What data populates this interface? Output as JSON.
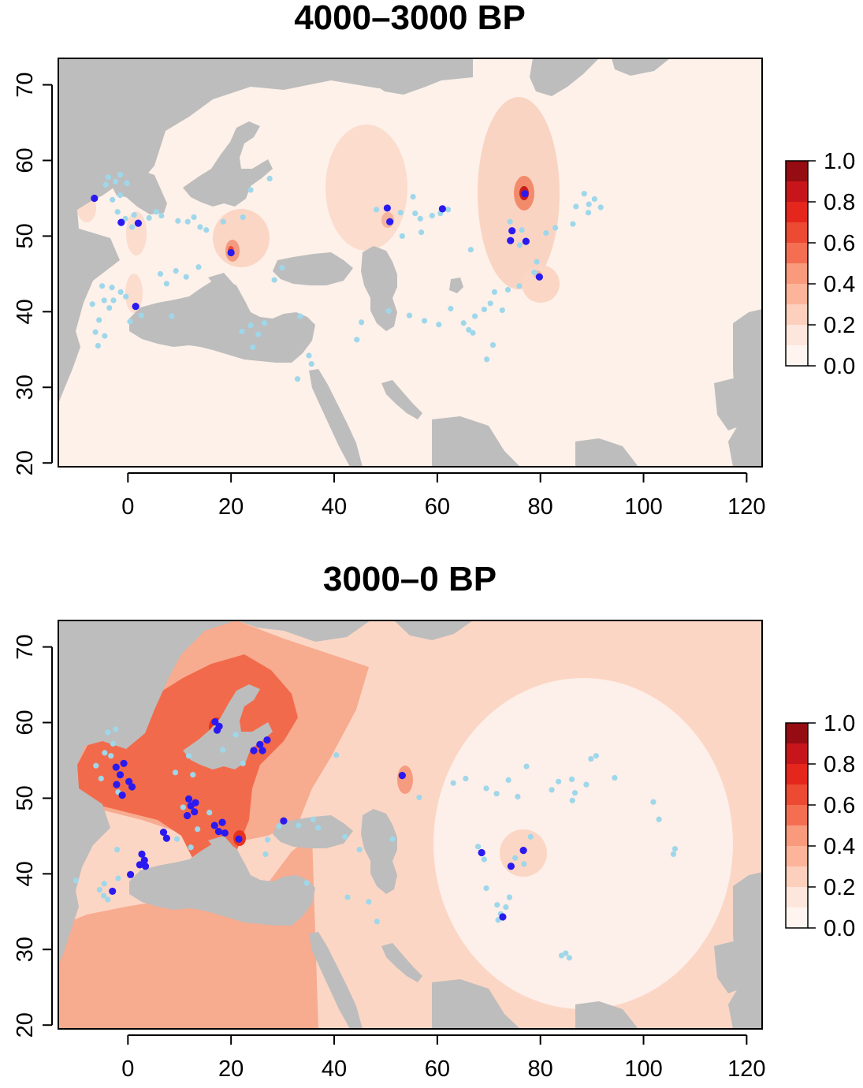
{
  "figure": {
    "colors": {
      "land_low": "#fdf1ea",
      "sea": "#bdbdbd",
      "site_absent": "#9fd7ea",
      "site_present": "#2a1af0",
      "legend_ramp": [
        "#fff5f0",
        "#fcd7c6",
        "#fc9f83",
        "#f4603f",
        "#e8251b",
        "#a50f15",
        "#67000d"
      ]
    },
    "legend": {
      "ticks": [
        "1.0",
        "0.8",
        "0.6",
        "0.4",
        "0.2",
        "0.0"
      ],
      "breaks": [
        0.0,
        0.1,
        0.2,
        0.3,
        0.4,
        0.5,
        0.6,
        0.7,
        0.8,
        0.9,
        1.0
      ]
    },
    "panels": [
      {
        "id": "panel-1",
        "title": "4000–3000 BP",
        "x_ticks": [
          "0",
          "20",
          "40",
          "60",
          "80",
          "100",
          "120"
        ],
        "y_ticks": [
          "20",
          "30",
          "40",
          "50",
          "60",
          "70"
        ]
      },
      {
        "id": "panel-2",
        "title": "3000–0 BP",
        "x_ticks": [
          "0",
          "20",
          "40",
          "60",
          "80",
          "100",
          "120"
        ],
        "y_ticks": [
          "20",
          "30",
          "40",
          "50",
          "60",
          "70"
        ]
      }
    ]
  },
  "chart_data": [
    {
      "type": "heatmap",
      "title": "4000–3000 BP",
      "xlim": [
        -13.5,
        123
      ],
      "ylim": [
        19.5,
        73.5
      ],
      "xticks": [
        0,
        20,
        40,
        60,
        80,
        100,
        120
      ],
      "yticks": [
        20,
        30,
        40,
        50,
        60,
        70
      ],
      "colorbar_range": [
        0,
        1
      ],
      "hotspots": [
        {
          "lon": 77,
          "lat": 55.5,
          "value": 0.95
        },
        {
          "lon": 20,
          "lat": 48,
          "value": 0.55
        },
        {
          "lon": 50.5,
          "lat": 53,
          "value": 0.25
        },
        {
          "lon": 80,
          "lat": 44.5,
          "value": 0.25
        },
        {
          "lon": 75,
          "lat": 50,
          "value": 0.15
        },
        {
          "lon": 1.5,
          "lat": 41.5,
          "value": 0.12
        },
        {
          "lon": -1,
          "lat": 51,
          "value": 0.1
        },
        {
          "lon": -7,
          "lat": 54,
          "value": 0.08
        }
      ],
      "sites_present": [
        {
          "lon": -6.5,
          "lat": 55
        },
        {
          "lon": -1.3,
          "lat": 51.8
        },
        {
          "lon": 2,
          "lat": 51.7
        },
        {
          "lon": 1.5,
          "lat": 40.7
        },
        {
          "lon": 20,
          "lat": 47.8
        },
        {
          "lon": 50.3,
          "lat": 53.7
        },
        {
          "lon": 50.8,
          "lat": 51.9
        },
        {
          "lon": 61,
          "lat": 53.6
        },
        {
          "lon": 77,
          "lat": 55.6
        },
        {
          "lon": 74.5,
          "lat": 50.7
        },
        {
          "lon": 74.2,
          "lat": 49.4
        },
        {
          "lon": 77.2,
          "lat": 49.3
        },
        {
          "lon": 79.8,
          "lat": 44.6
        }
      ],
      "sites_absent": [
        {
          "lon": -2,
          "lat": 53.2
        },
        {
          "lon": -0.5,
          "lat": 52.3
        },
        {
          "lon": 0.8,
          "lat": 51.2
        },
        {
          "lon": -3,
          "lat": 54.8
        },
        {
          "lon": -1.5,
          "lat": 55.4
        },
        {
          "lon": 1.2,
          "lat": 52.8
        },
        {
          "lon": -3.8,
          "lat": 57.8
        },
        {
          "lon": -2.4,
          "lat": 57.2
        },
        {
          "lon": -1.5,
          "lat": 58.1
        },
        {
          "lon": -4.3,
          "lat": 56.8
        },
        {
          "lon": -0.2,
          "lat": 57
        },
        {
          "lon": 4.1,
          "lat": 52.4
        },
        {
          "lon": 5.5,
          "lat": 53.2
        },
        {
          "lon": 6.5,
          "lat": 52.7
        },
        {
          "lon": 9.7,
          "lat": 52
        },
        {
          "lon": 11.6,
          "lat": 51.9
        },
        {
          "lon": 12.8,
          "lat": 52.5
        },
        {
          "lon": 14,
          "lat": 51.2
        },
        {
          "lon": 15.2,
          "lat": 50.8
        },
        {
          "lon": 18.5,
          "lat": 51.9
        },
        {
          "lon": 22.3,
          "lat": 52.5
        },
        {
          "lon": 27.5,
          "lat": 57.6
        },
        {
          "lon": 23.8,
          "lat": 56.1
        },
        {
          "lon": 13.7,
          "lat": 45.9
        },
        {
          "lon": 11.3,
          "lat": 44.6
        },
        {
          "lon": 9.3,
          "lat": 45.4
        },
        {
          "lon": 7.5,
          "lat": 43.7
        },
        {
          "lon": 6.3,
          "lat": 45
        },
        {
          "lon": -5,
          "lat": 43.4
        },
        {
          "lon": -3.1,
          "lat": 43.2
        },
        {
          "lon": -1.4,
          "lat": 42.6
        },
        {
          "lon": -0.4,
          "lat": 42
        },
        {
          "lon": -2.8,
          "lat": 41.5
        },
        {
          "lon": -3.6,
          "lat": 40.5
        },
        {
          "lon": -4.6,
          "lat": 41.5
        },
        {
          "lon": -5.6,
          "lat": 38.9
        },
        {
          "lon": -6.3,
          "lat": 37.3
        },
        {
          "lon": -4.5,
          "lat": 36.8
        },
        {
          "lon": -6.9,
          "lat": 41
        },
        {
          "lon": -5.8,
          "lat": 35.5
        },
        {
          "lon": 0.4,
          "lat": 38.7
        },
        {
          "lon": 2.6,
          "lat": 39.5
        },
        {
          "lon": 8.5,
          "lat": 39.4
        },
        {
          "lon": 24.2,
          "lat": 35.3
        },
        {
          "lon": 25.3,
          "lat": 37
        },
        {
          "lon": 23.8,
          "lat": 38.2
        },
        {
          "lon": 22.1,
          "lat": 37.4
        },
        {
          "lon": 26.5,
          "lat": 38.5
        },
        {
          "lon": 33.4,
          "lat": 39.4
        },
        {
          "lon": 29.9,
          "lat": 45.8
        },
        {
          "lon": 28.4,
          "lat": 44.2
        },
        {
          "lon": 35.1,
          "lat": 34.2
        },
        {
          "lon": 35.6,
          "lat": 33.1
        },
        {
          "lon": 32.9,
          "lat": 31.1
        },
        {
          "lon": 48.2,
          "lat": 53.5
        },
        {
          "lon": 52.9,
          "lat": 53.1
        },
        {
          "lon": 55.7,
          "lat": 53
        },
        {
          "lon": 56.7,
          "lat": 52.3
        },
        {
          "lon": 59,
          "lat": 52.7
        },
        {
          "lon": 60.6,
          "lat": 53
        },
        {
          "lon": 62.1,
          "lat": 53.5
        },
        {
          "lon": 55.3,
          "lat": 55.2
        },
        {
          "lon": 53.2,
          "lat": 50
        },
        {
          "lon": 56.9,
          "lat": 50.5
        },
        {
          "lon": 66.5,
          "lat": 48.2
        },
        {
          "lon": 76,
          "lat": 48.8
        },
        {
          "lon": 76.4,
          "lat": 50.8
        },
        {
          "lon": 74.1,
          "lat": 51.9
        },
        {
          "lon": 81.1,
          "lat": 50.4
        },
        {
          "lon": 82.9,
          "lat": 51.1
        },
        {
          "lon": 86.9,
          "lat": 53.9
        },
        {
          "lon": 88.5,
          "lat": 55.6
        },
        {
          "lon": 89.4,
          "lat": 54.2
        },
        {
          "lon": 90.5,
          "lat": 54.9
        },
        {
          "lon": 91.7,
          "lat": 53.8
        },
        {
          "lon": 89.3,
          "lat": 53.1
        },
        {
          "lon": 86.3,
          "lat": 51.6
        },
        {
          "lon": 79.3,
          "lat": 46.6
        },
        {
          "lon": 78.8,
          "lat": 45.2
        },
        {
          "lon": 71.1,
          "lat": 42.6
        },
        {
          "lon": 70.3,
          "lat": 41.1
        },
        {
          "lon": 69.1,
          "lat": 40.3
        },
        {
          "lon": 67.3,
          "lat": 39.4
        },
        {
          "lon": 66.1,
          "lat": 37.6
        },
        {
          "lon": 65.1,
          "lat": 38.5
        },
        {
          "lon": 66.9,
          "lat": 37.2
        },
        {
          "lon": 72.6,
          "lat": 40.2
        },
        {
          "lon": 73.7,
          "lat": 42.9
        },
        {
          "lon": 75.9,
          "lat": 43.4
        },
        {
          "lon": 70.8,
          "lat": 35.6
        },
        {
          "lon": 69.6,
          "lat": 33.7
        },
        {
          "lon": 60.3,
          "lat": 38.3
        },
        {
          "lon": 57.5,
          "lat": 38.8
        },
        {
          "lon": 62.6,
          "lat": 40.4
        },
        {
          "lon": 54.6,
          "lat": 39.5
        },
        {
          "lon": 50.6,
          "lat": 40.1
        },
        {
          "lon": 44.4,
          "lat": 36.3
        },
        {
          "lon": 45.3,
          "lat": 38.6
        }
      ]
    },
    {
      "type": "heatmap",
      "title": "3000–0 BP",
      "xlim": [
        -13.5,
        123
      ],
      "ylim": [
        19.5,
        73.5
      ],
      "xticks": [
        0,
        20,
        40,
        60,
        80,
        100,
        120
      ],
      "yticks": [
        20,
        30,
        40,
        50,
        60,
        70
      ],
      "colorbar_range": [
        0,
        1
      ],
      "hotspots": [
        {
          "lon": 21,
          "lat": 44.5,
          "value": 0.6
        },
        {
          "lon": 18,
          "lat": 59.5,
          "value": 0.6
        },
        {
          "lon": 54,
          "lat": 53,
          "value": 0.35
        },
        {
          "lon": 77,
          "lat": 43,
          "value": 0.2
        },
        {
          "lon": -3,
          "lat": 52.5,
          "value": 0.45
        },
        {
          "lon": 12.5,
          "lat": 48.5,
          "value": 0.4
        }
      ],
      "sites_present": [
        {
          "lon": -2.3,
          "lat": 54.1
        },
        {
          "lon": -1.5,
          "lat": 53.1
        },
        {
          "lon": -0.8,
          "lat": 54.6
        },
        {
          "lon": 0.2,
          "lat": 52.2
        },
        {
          "lon": 0.8,
          "lat": 51.5
        },
        {
          "lon": -2.2,
          "lat": 51.8
        },
        {
          "lon": -1.1,
          "lat": 50.4
        },
        {
          "lon": -3,
          "lat": 37.7
        },
        {
          "lon": 0.5,
          "lat": 39.9
        },
        {
          "lon": 2.7,
          "lat": 42.6
        },
        {
          "lon": 3.2,
          "lat": 41.8
        },
        {
          "lon": 3.4,
          "lat": 41
        },
        {
          "lon": 2.3,
          "lat": 41.2
        },
        {
          "lon": 6.9,
          "lat": 45.5
        },
        {
          "lon": 7.5,
          "lat": 44.7
        },
        {
          "lon": 11.5,
          "lat": 47.7
        },
        {
          "lon": 12.2,
          "lat": 49
        },
        {
          "lon": 11.8,
          "lat": 49.9
        },
        {
          "lon": 12.9,
          "lat": 48.2
        },
        {
          "lon": 13.1,
          "lat": 49.4
        },
        {
          "lon": 16.8,
          "lat": 46.4
        },
        {
          "lon": 17.6,
          "lat": 45.6
        },
        {
          "lon": 18.8,
          "lat": 45.4
        },
        {
          "lon": 18.3,
          "lat": 46.8
        },
        {
          "lon": 16.9,
          "lat": 60.1
        },
        {
          "lon": 17.7,
          "lat": 59.5
        },
        {
          "lon": 17.3,
          "lat": 59
        },
        {
          "lon": 24.4,
          "lat": 56.3
        },
        {
          "lon": 25.6,
          "lat": 57.1
        },
        {
          "lon": 26.1,
          "lat": 56.3
        },
        {
          "lon": 27,
          "lat": 57.7
        },
        {
          "lon": 21.5,
          "lat": 44.6
        },
        {
          "lon": 30.2,
          "lat": 47
        },
        {
          "lon": 53.2,
          "lat": 53
        },
        {
          "lon": 68.6,
          "lat": 42.8
        },
        {
          "lon": 74.3,
          "lat": 41
        },
        {
          "lon": 76.7,
          "lat": 43.1
        },
        {
          "lon": 72.7,
          "lat": 34.3
        }
      ],
      "sites_absent": [
        {
          "lon": -2.9,
          "lat": 57.2
        },
        {
          "lon": -3.9,
          "lat": 58.7
        },
        {
          "lon": -2.4,
          "lat": 59.1
        },
        {
          "lon": -4.5,
          "lat": 56
        },
        {
          "lon": -6.2,
          "lat": 54.3
        },
        {
          "lon": -5.2,
          "lat": 52.6
        },
        {
          "lon": -3.3,
          "lat": 55.6
        },
        {
          "lon": -1.9,
          "lat": 50.8
        },
        {
          "lon": -10.1,
          "lat": 39.1
        },
        {
          "lon": -5.5,
          "lat": 37.9
        },
        {
          "lon": -4.7,
          "lat": 37.1
        },
        {
          "lon": -3.9,
          "lat": 36.6
        },
        {
          "lon": -4.6,
          "lat": 38.7
        },
        {
          "lon": -1.9,
          "lat": 39.4
        },
        {
          "lon": -2.1,
          "lat": 43.2
        },
        {
          "lon": 9.5,
          "lat": 44.6
        },
        {
          "lon": 12.2,
          "lat": 43.5
        },
        {
          "lon": 13.5,
          "lat": 45.9
        },
        {
          "lon": 12.6,
          "lat": 53.1
        },
        {
          "lon": 11.8,
          "lat": 55.6
        },
        {
          "lon": 9.2,
          "lat": 53.4
        },
        {
          "lon": 10.7,
          "lat": 48.8
        },
        {
          "lon": 15.8,
          "lat": 48.1
        },
        {
          "lon": 20.9,
          "lat": 58.4
        },
        {
          "lon": 18.4,
          "lat": 56.4
        },
        {
          "lon": 22.3,
          "lat": 54.6
        },
        {
          "lon": 26.7,
          "lat": 42.6
        },
        {
          "lon": 27.1,
          "lat": 44.5
        },
        {
          "lon": 29.3,
          "lat": 46.3
        },
        {
          "lon": 33.1,
          "lat": 46.4
        },
        {
          "lon": 35.9,
          "lat": 47.2
        },
        {
          "lon": 36.9,
          "lat": 46.1
        },
        {
          "lon": 42.1,
          "lat": 44.9
        },
        {
          "lon": 40.4,
          "lat": 55.7
        },
        {
          "lon": 44.9,
          "lat": 43.2
        },
        {
          "lon": 42.6,
          "lat": 36.9
        },
        {
          "lon": 46.7,
          "lat": 36.3
        },
        {
          "lon": 48.3,
          "lat": 33.7
        },
        {
          "lon": 34.7,
          "lat": 38.8
        },
        {
          "lon": 51.3,
          "lat": 44.6
        },
        {
          "lon": 56.5,
          "lat": 50.1
        },
        {
          "lon": 63.1,
          "lat": 52
        },
        {
          "lon": 65.5,
          "lat": 52.6
        },
        {
          "lon": 69.5,
          "lat": 51.3
        },
        {
          "lon": 71.5,
          "lat": 50.6
        },
        {
          "lon": 73.8,
          "lat": 52.4
        },
        {
          "lon": 75.6,
          "lat": 50.2
        },
        {
          "lon": 77.3,
          "lat": 54.2
        },
        {
          "lon": 82.2,
          "lat": 51.1
        },
        {
          "lon": 83.5,
          "lat": 52.2
        },
        {
          "lon": 86.1,
          "lat": 52.5
        },
        {
          "lon": 86.7,
          "lat": 50.7
        },
        {
          "lon": 86.2,
          "lat": 49.7
        },
        {
          "lon": 88.9,
          "lat": 51.8
        },
        {
          "lon": 89.8,
          "lat": 55.2
        },
        {
          "lon": 90.8,
          "lat": 55.6
        },
        {
          "lon": 94.4,
          "lat": 52.7
        },
        {
          "lon": 101.9,
          "lat": 49.5
        },
        {
          "lon": 103,
          "lat": 47.2
        },
        {
          "lon": 106.1,
          "lat": 43.3
        },
        {
          "lon": 105.8,
          "lat": 42.6
        },
        {
          "lon": 67.9,
          "lat": 43.6
        },
        {
          "lon": 69.1,
          "lat": 41.9
        },
        {
          "lon": 78.1,
          "lat": 44.9
        },
        {
          "lon": 76.8,
          "lat": 41.3
        },
        {
          "lon": 75.1,
          "lat": 42.1
        },
        {
          "lon": 69.5,
          "lat": 38.1
        },
        {
          "lon": 71.6,
          "lat": 35.9
        },
        {
          "lon": 72.3,
          "lat": 34.7
        },
        {
          "lon": 71.8,
          "lat": 33.9
        },
        {
          "lon": 73.3,
          "lat": 35.6
        },
        {
          "lon": 74,
          "lat": 36.9
        },
        {
          "lon": 84.1,
          "lat": 29.2
        },
        {
          "lon": 84.9,
          "lat": 29.5
        },
        {
          "lon": 85.6,
          "lat": 28.9
        }
      ]
    }
  ]
}
